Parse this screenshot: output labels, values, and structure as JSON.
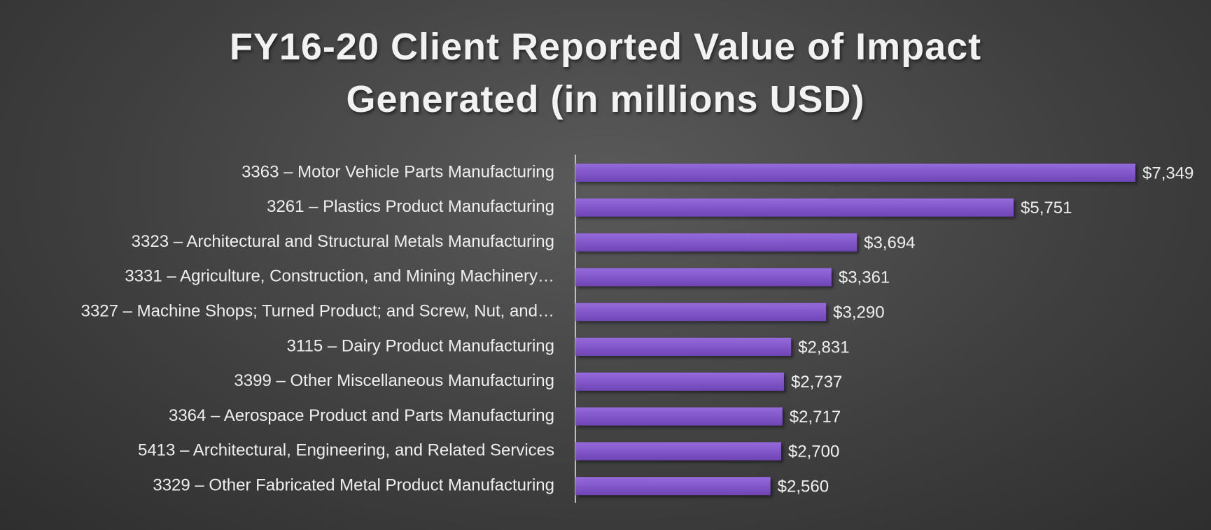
{
  "chart_data": {
    "type": "bar",
    "orientation": "horizontal",
    "title": "FY16-20 Client Reported Value of Impact Generated (in millions USD)",
    "categories": [
      "3363 – Motor Vehicle Parts Manufacturing",
      "3261 – Plastics Product Manufacturing",
      "3323 – Architectural and Structural Metals Manufacturing",
      "3331 – Agriculture, Construction, and Mining Machinery…",
      "3327 – Machine Shops; Turned Product; and Screw, Nut, and…",
      "3115 – Dairy Product Manufacturing",
      "3399 – Other Miscellaneous Manufacturing",
      "3364 – Aerospace Product and Parts Manufacturing",
      "5413 – Architectural, Engineering, and Related Services",
      "3329 – Other Fabricated Metal Product Manufacturing"
    ],
    "values": [
      7349,
      5751,
      3694,
      3361,
      3290,
      2831,
      2737,
      2717,
      2700,
      2560
    ],
    "value_labels": [
      "$7,349",
      "$5,751",
      "$3,694",
      "$3,361",
      "$3,290",
      "$2,831",
      "$2,737",
      "$2,717",
      "$2,700",
      "$2,560"
    ],
    "color": "#8350d4"
  }
}
